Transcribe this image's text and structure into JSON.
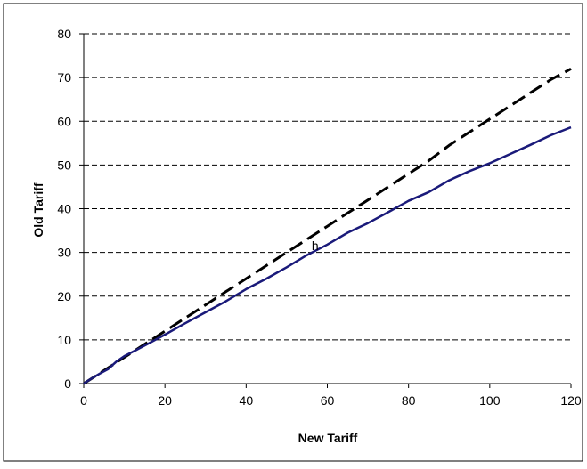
{
  "chart_data": {
    "type": "line",
    "title": "",
    "xlabel": "New Tariff",
    "ylabel": "Old Tariff",
    "xlim": [
      0,
      120
    ],
    "ylim": [
      0,
      80
    ],
    "x_ticks": [
      0,
      20,
      40,
      60,
      80,
      100,
      120
    ],
    "y_ticks": [
      0,
      10,
      20,
      30,
      40,
      50,
      60,
      70,
      80
    ],
    "grid": "horizontal-dashed",
    "legend": "none",
    "annotations": [
      {
        "text": "h",
        "x": 57,
        "y": 30.5
      }
    ],
    "series": [
      {
        "style": "dashed",
        "color": "#000000",
        "x": [
          0,
          5,
          10,
          15,
          20,
          25,
          30,
          35,
          40,
          45,
          50,
          55,
          60,
          65,
          70,
          75,
          80,
          85,
          90,
          95,
          100,
          105,
          110,
          115,
          120
        ],
        "y": [
          0,
          3,
          6,
          9,
          12,
          15,
          18,
          21,
          24,
          27,
          30,
          33,
          36,
          39,
          42,
          45,
          48,
          51,
          54.5,
          57.5,
          60.5,
          63.5,
          66.5,
          69.5,
          72
        ]
      },
      {
        "style": "solid",
        "color": "#1a1a7a",
        "x": [
          0,
          2,
          4,
          6,
          8,
          10,
          15,
          20,
          25,
          30,
          35,
          40,
          45,
          50,
          55,
          60,
          65,
          70,
          75,
          80,
          85,
          90,
          95,
          100,
          105,
          110,
          115,
          120
        ],
        "y": [
          0,
          1.2,
          2.3,
          3.3,
          5,
          6.3,
          8.7,
          11.2,
          13.8,
          16.3,
          18.8,
          21.6,
          24,
          26.6,
          29.4,
          31.8,
          34.5,
          36.7,
          39.2,
          41.8,
          43.8,
          46.5,
          48.6,
          50.4,
          52.5,
          54.6,
          56.8,
          58.6
        ]
      }
    ]
  }
}
